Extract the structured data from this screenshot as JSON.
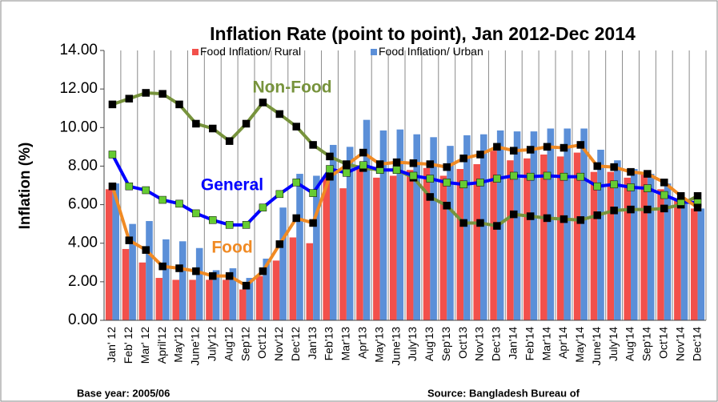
{
  "chart_data": {
    "type": "bar-line",
    "title": "Inflation Rate (point to point), Jan 2012-Dec 2014",
    "y_label": "Inflation (%)",
    "categories": [
      "Jan' 12",
      "Feb' 12",
      "Mar' 12",
      "April'12",
      "May'12",
      "June'12",
      "July'12",
      "Aug'12",
      "Sep'12",
      "Oct'12",
      "Nov'12",
      "Dec'12",
      "Jan'13",
      "Feb'13",
      "Mar'13",
      "Apr'13",
      "May'13",
      "June'13",
      "July'13",
      "Aug'13",
      "Sep'13",
      "Oct'13",
      "Nov'13",
      "Dec'13",
      "Jan'14",
      "Feb'14",
      "Mar'14",
      "Apr'14",
      "May'14",
      "June'14",
      "July'14",
      "Aug'14",
      "Sep'14",
      "Oct'14",
      "Nov'14",
      "Dec'14"
    ],
    "series": [
      {
        "name": "Food Inflation/ Rural",
        "type": "bar",
        "color": "#f2504b",
        "values": [
          6.8,
          3.7,
          3.0,
          2.2,
          2.1,
          2.1,
          2.1,
          2.1,
          1.6,
          2.3,
          3.1,
          4.3,
          4.0,
          7.5,
          6.85,
          8.0,
          7.4,
          7.5,
          7.8,
          7.9,
          7.5,
          7.85,
          8.1,
          8.8,
          8.3,
          8.4,
          8.6,
          8.5,
          8.7,
          7.7,
          7.7,
          7.4,
          7.6,
          6.8,
          6.2,
          5.8
        ]
      },
      {
        "name": "Food Inflation/ Urban",
        "type": "bar",
        "color": "#5b8fd8",
        "values": [
          7.1,
          5.0,
          5.15,
          4.2,
          4.1,
          3.75,
          2.6,
          2.7,
          2.2,
          3.2,
          5.85,
          7.6,
          7.5,
          9.1,
          9.0,
          10.4,
          9.85,
          9.9,
          9.65,
          9.5,
          9.05,
          9.6,
          9.65,
          9.85,
          9.8,
          9.8,
          9.95,
          9.95,
          9.95,
          8.85,
          8.3,
          7.85,
          7.6,
          7.1,
          6.3,
          5.8
        ]
      }
    ],
    "lines": [
      {
        "name": "Non-Food",
        "color": "#77933c",
        "marker_color": "#000000",
        "values": [
          11.2,
          11.5,
          11.8,
          11.75,
          11.2,
          10.2,
          9.95,
          9.3,
          10.2,
          11.3,
          10.7,
          10.05,
          9.1,
          8.5,
          8.1,
          7.9,
          7.8,
          7.8,
          7.4,
          6.4,
          5.95,
          5.05,
          5.05,
          4.9,
          5.5,
          5.4,
          5.3,
          5.25,
          5.2,
          5.45,
          5.7,
          5.75,
          5.75,
          5.8,
          6.0,
          6.45
        ]
      },
      {
        "name": "General",
        "color": "#0000ff",
        "marker_color": "#66cc33",
        "values": [
          8.6,
          6.95,
          6.75,
          6.25,
          6.05,
          5.55,
          5.2,
          4.95,
          4.95,
          5.85,
          6.55,
          7.15,
          6.6,
          7.85,
          7.65,
          8.05,
          7.8,
          7.8,
          7.5,
          7.35,
          7.15,
          7.05,
          7.15,
          7.35,
          7.5,
          7.45,
          7.5,
          7.45,
          7.45,
          6.95,
          7.05,
          6.9,
          6.85,
          6.5,
          6.15,
          6.1
        ]
      },
      {
        "name": "Food",
        "color": "#f08a24",
        "marker_color": "#000000",
        "values": [
          6.95,
          4.15,
          3.65,
          2.8,
          2.7,
          2.55,
          2.3,
          2.3,
          1.8,
          2.55,
          3.95,
          5.3,
          5.05,
          7.45,
          8.05,
          8.7,
          8.1,
          8.2,
          8.15,
          8.1,
          7.95,
          8.4,
          8.6,
          9.0,
          8.8,
          8.85,
          9.0,
          8.95,
          9.1,
          8.0,
          7.95,
          7.7,
          7.6,
          7.15,
          6.45,
          5.85
        ]
      }
    ],
    "ylim": [
      0,
      14
    ],
    "yticks": [
      {
        "value": 0,
        "label": "0.00"
      },
      {
        "value": 2,
        "label": "2.00"
      },
      {
        "value": 4,
        "label": "4.00"
      },
      {
        "value": 6,
        "label": "6.00"
      },
      {
        "value": 8,
        "label": "8.00"
      },
      {
        "value": 10,
        "label": "10.00"
      },
      {
        "value": 12,
        "label": "12.00"
      },
      {
        "value": 14,
        "label": "14.00"
      }
    ],
    "vertical_grid": true,
    "footer_left": "Base year: 2005/06",
    "footer_right": "Source:  Bangladesh Bureau of"
  }
}
